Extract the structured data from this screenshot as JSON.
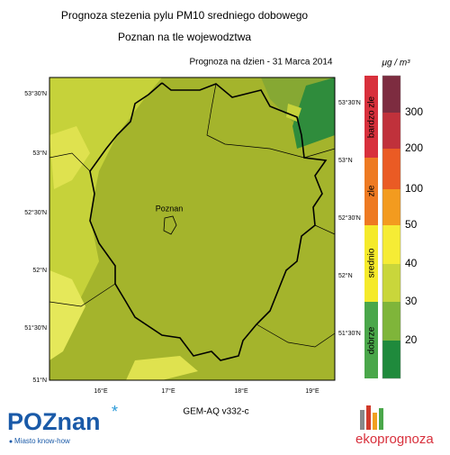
{
  "header": {
    "title": "Prognoza stezenia pylu PM10 sredniego dobowego",
    "subtitle": "Poznan na tle wojewodztwa",
    "forecast_date": "Prognoza na dzien -  31 Marca 2014",
    "unit": "μg / m³"
  },
  "map": {
    "city_label": "Poznan",
    "lat_labels_left": [
      "53°30'N",
      "53°N",
      "52°30'N",
      "52°N",
      "51°30'N",
      "51°N"
    ],
    "lat_labels_right": [
      "53°30'N",
      "53°N",
      "52°30'N",
      "52°N",
      "51°30'N"
    ],
    "lon_labels": [
      "16°E",
      "17°E",
      "18°E",
      "19°E"
    ],
    "model": "GEM-AQ v332-c"
  },
  "legend": {
    "categories": [
      "bardzo zle",
      "zle",
      "srednio",
      "dobrze"
    ],
    "levels": [
      300,
      200,
      100,
      50,
      40,
      30,
      20
    ]
  },
  "footer": {
    "logo_left": "POZnan",
    "tagline": "Miasto know-how",
    "logo_right": "ekoprognoza"
  }
}
